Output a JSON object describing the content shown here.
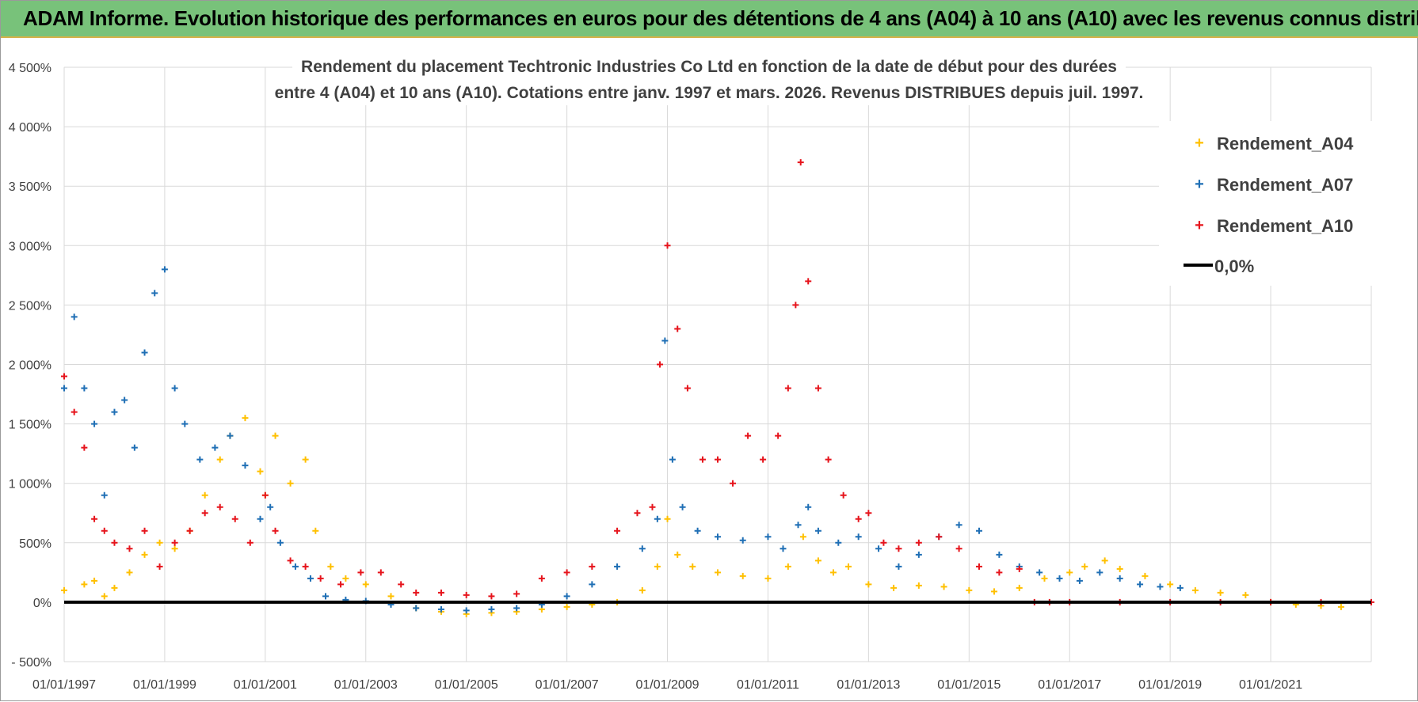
{
  "banner": {
    "text": "ADAM Informe. Evolution historique des performances en euros pour des détentions de 4 ans (A04) à 10 ans (A10) avec les revenus connus distribués"
  },
  "chart_data": {
    "type": "scatter",
    "title_line1": "Rendement du placement Techtronic Industries Co Ltd en fonction de la date de début pour des durées",
    "title_line2": "entre 4 (A04) et 10 ans (A10). Cotations entre janv. 1997 et mars. 2026. Revenus DISTRIBUES depuis juil. 1997.",
    "xlabel": "",
    "ylabel": "",
    "xlim": [
      1997.0,
      2023.0
    ],
    "ylim": [
      -500,
      4500
    ],
    "x_ticks": [
      1997,
      1999,
      2001,
      2003,
      2005,
      2007,
      2009,
      2011,
      2013,
      2015,
      2017,
      2019,
      2021
    ],
    "x_tick_labels": [
      "01/01/1997",
      "01/01/1999",
      "01/01/2001",
      "01/01/2003",
      "01/01/2005",
      "01/01/2007",
      "01/01/2009",
      "01/01/2011",
      "01/01/2013",
      "01/01/2015",
      "01/01/2017",
      "01/01/2019",
      "01/01/2021"
    ],
    "y_ticks": [
      -500,
      0,
      500,
      1000,
      1500,
      2000,
      2500,
      3000,
      3500,
      4000,
      4500
    ],
    "y_tick_labels": [
      "- 500%",
      "0%",
      "500%",
      "1 000%",
      "1 500%",
      "2 000%",
      "2 500%",
      "3 000%",
      "3 500%",
      "4 000%",
      "4 500%"
    ],
    "grid": true,
    "legend_position": "top-right",
    "legend": [
      "Rendement_A04",
      "Rendement_A07",
      "Rendement_A10",
      "0,0%"
    ],
    "series": [
      {
        "name": "Rendement_A04",
        "color": "#ffc000",
        "x": [
          1997.0,
          1997.4,
          1997.6,
          1997.8,
          1998.0,
          1998.3,
          1998.6,
          1998.9,
          1999.2,
          1999.5,
          1999.8,
          2000.1,
          2000.3,
          2000.6,
          2000.9,
          2001.0,
          2001.2,
          2001.5,
          2001.8,
          2002.0,
          2002.3,
          2002.6,
          2003.0,
          2003.5,
          2004.0,
          2004.5,
          2005.0,
          2005.5,
          2006.0,
          2006.5,
          2007.0,
          2007.5,
          2008.0,
          2008.5,
          2008.8,
          2009.0,
          2009.2,
          2009.5,
          2010.0,
          2010.5,
          2011.0,
          2011.4,
          2011.7,
          2012.0,
          2012.3,
          2012.6,
          2013.0,
          2013.5,
          2014.0,
          2014.5,
          2015.0,
          2015.5,
          2016.0,
          2016.5,
          2017.0,
          2017.3,
          2017.7,
          2018.0,
          2018.5,
          2019.0,
          2019.5,
          2020.0,
          2020.5,
          2021.0,
          2021.5,
          2022.0,
          2022.4
        ],
        "y": [
          100,
          150,
          180,
          50,
          120,
          250,
          400,
          500,
          450,
          600,
          900,
          1200,
          1400,
          1550,
          1100,
          900,
          1400,
          1000,
          1200,
          600,
          300,
          200,
          150,
          50,
          -50,
          -80,
          -100,
          -90,
          -80,
          -60,
          -40,
          -20,
          0,
          100,
          300,
          700,
          400,
          300,
          250,
          220,
          200,
          300,
          550,
          350,
          250,
          300,
          150,
          120,
          140,
          130,
          100,
          90,
          120,
          200,
          250,
          300,
          350,
          280,
          220,
          150,
          100,
          80,
          60,
          0,
          -20,
          -30,
          -40
        ]
      },
      {
        "name": "Rendement_A07",
        "color": "#1f6fb5",
        "x": [
          1997.0,
          1997.2,
          1997.4,
          1997.6,
          1997.8,
          1998.0,
          1998.2,
          1998.4,
          1998.6,
          1998.8,
          1999.0,
          1999.2,
          1999.4,
          1999.7,
          2000.0,
          2000.3,
          2000.6,
          2000.9,
          2001.1,
          2001.3,
          2001.6,
          2001.9,
          2002.2,
          2002.6,
          2003.0,
          2003.5,
          2004.0,
          2004.5,
          2005.0,
          2005.5,
          2006.0,
          2006.5,
          2007.0,
          2007.5,
          2008.0,
          2008.5,
          2008.8,
          2008.95,
          2009.1,
          2009.3,
          2009.6,
          2010.0,
          2010.5,
          2011.0,
          2011.3,
          2011.6,
          2011.8,
          2012.0,
          2012.4,
          2012.8,
          2013.2,
          2013.6,
          2014.0,
          2014.4,
          2014.8,
          2015.2,
          2015.6,
          2016.0,
          2016.4,
          2016.8,
          2017.2,
          2017.6,
          2018.0,
          2018.4,
          2018.8,
          2019.2
        ],
        "y": [
          1800,
          2400,
          1800,
          1500,
          900,
          1600,
          1700,
          1300,
          2100,
          2600,
          2800,
          1800,
          1500,
          1200,
          1300,
          1400,
          1150,
          700,
          800,
          500,
          300,
          200,
          50,
          20,
          10,
          -20,
          -50,
          -60,
          -70,
          -60,
          -50,
          -20,
          50,
          150,
          300,
          450,
          700,
          2200,
          1200,
          800,
          600,
          550,
          520,
          550,
          450,
          650,
          800,
          600,
          500,
          550,
          450,
          300,
          400,
          550,
          650,
          600,
          400,
          300,
          250,
          200,
          180,
          250,
          200,
          150,
          130,
          120
        ]
      },
      {
        "name": "Rendement_A10",
        "color": "#e6141c",
        "x": [
          1997.0,
          1997.2,
          1997.4,
          1997.6,
          1997.8,
          1998.0,
          1998.3,
          1998.6,
          1998.9,
          1999.2,
          1999.5,
          1999.8,
          2000.1,
          2000.4,
          2000.7,
          2001.0,
          2001.2,
          2001.5,
          2001.8,
          2002.1,
          2002.5,
          2002.9,
          2003.3,
          2003.7,
          2004.0,
          2004.5,
          2005.0,
          2005.5,
          2006.0,
          2006.5,
          2007.0,
          2007.5,
          2008.0,
          2008.4,
          2008.7,
          2008.85,
          2009.0,
          2009.2,
          2009.4,
          2009.7,
          2010.0,
          2010.3,
          2010.6,
          2010.9,
          2011.2,
          2011.4,
          2011.55,
          2011.65,
          2011.8,
          2012.0,
          2012.2,
          2012.5,
          2012.8,
          2013.0,
          2013.3,
          2013.6,
          2014.0,
          2014.4,
          2014.8,
          2015.2,
          2015.6,
          2016.0,
          2016.3,
          2016.6,
          2017.0,
          2018.0,
          2019.0,
          2020.0,
          2021.0,
          2022.0,
          2023.0
        ],
        "y": [
          1900,
          1600,
          1300,
          700,
          600,
          500,
          450,
          600,
          300,
          500,
          600,
          750,
          800,
          700,
          500,
          900,
          600,
          350,
          300,
          200,
          150,
          250,
          250,
          150,
          80,
          80,
          60,
          50,
          70,
          200,
          250,
          300,
          600,
          750,
          800,
          2000,
          3000,
          2300,
          1800,
          1200,
          1200,
          1000,
          1400,
          1200,
          1400,
          1800,
          2500,
          3700,
          2700,
          1800,
          1200,
          900,
          700,
          750,
          500,
          450,
          500,
          550,
          450,
          300,
          250,
          280,
          0,
          0,
          0,
          0,
          0,
          0,
          0,
          0,
          0
        ]
      },
      {
        "name": "0,0%",
        "color": "#000000",
        "x": [
          1997.0,
          2023.0
        ],
        "y": [
          0,
          0
        ]
      }
    ]
  }
}
